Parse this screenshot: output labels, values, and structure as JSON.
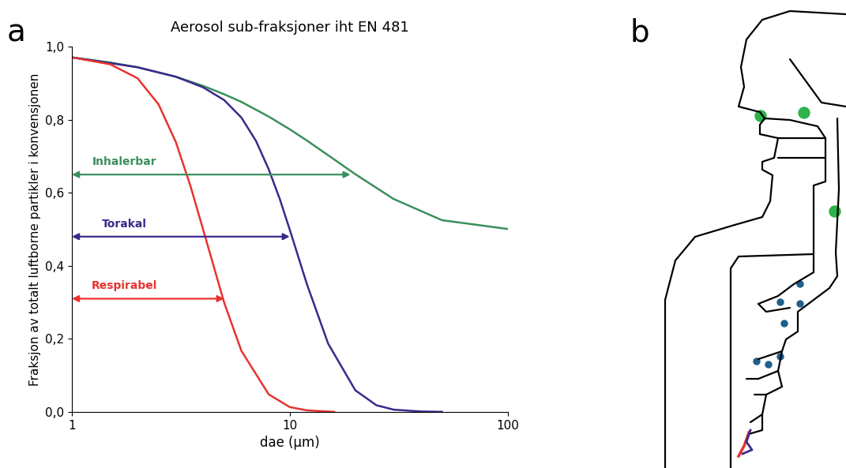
{
  "chart_data": {
    "type": "line",
    "title": "Aerosol sub-fraksjoner iht EN 481",
    "x_label": "dae (µm)",
    "y_label": "Fraksjon av totalt luftborne partikler i konvensjonen",
    "log": "x",
    "xlim": [
      1,
      100
    ],
    "xticks": [
      1,
      10,
      100
    ],
    "ylim": [
      0,
      1.0
    ],
    "yticks": [
      {
        "value": 0,
        "label": "0,0"
      },
      {
        "value": 0.2,
        "label": "0,2"
      },
      {
        "value": 0.4,
        "label": "0,4"
      },
      {
        "value": 0.6,
        "label": "0,6"
      },
      {
        "value": 0.8,
        "label": "0,8"
      },
      {
        "value": 1.0,
        "label": "1,0"
      }
    ],
    "grid": false,
    "series": [
      {
        "name": "Inhalerbar",
        "color": "#3a8f5c",
        "x": [
          1,
          1.5,
          2,
          3,
          4,
          5,
          6,
          8,
          10,
          12,
          15,
          20,
          30,
          50,
          100
        ],
        "values": [
          0.971,
          0.957,
          0.944,
          0.918,
          0.893,
          0.87,
          0.849,
          0.809,
          0.774,
          0.743,
          0.703,
          0.651,
          0.583,
          0.525,
          0.501
        ],
        "arrow": {
          "y": 0.65,
          "x_end": 19
        }
      },
      {
        "name": "Torakal",
        "color": "#3b2a8c",
        "x": [
          1,
          2,
          3,
          4,
          5,
          6,
          7,
          8,
          9,
          10,
          12,
          15,
          20,
          25,
          30,
          40,
          50
        ],
        "values": [
          0.971,
          0.944,
          0.918,
          0.889,
          0.854,
          0.806,
          0.742,
          0.665,
          0.583,
          0.499,
          0.349,
          0.187,
          0.059,
          0.018,
          0.006,
          0.001,
          0.0
        ],
        "arrow": {
          "y": 0.48,
          "x_end": 10
        }
      },
      {
        "name": "Respirabel",
        "color": "#e8332f",
        "x": [
          1,
          1.5,
          2,
          2.5,
          3,
          3.5,
          4,
          5,
          6,
          8,
          10,
          12,
          16
        ],
        "values": [
          0.971,
          0.952,
          0.914,
          0.842,
          0.739,
          0.619,
          0.5,
          0.299,
          0.167,
          0.048,
          0.013,
          0.004,
          0.0
        ],
        "arrow": {
          "y": 0.31,
          "x_end": 5
        }
      }
    ]
  },
  "panel_labels": [
    "a",
    "b"
  ]
}
